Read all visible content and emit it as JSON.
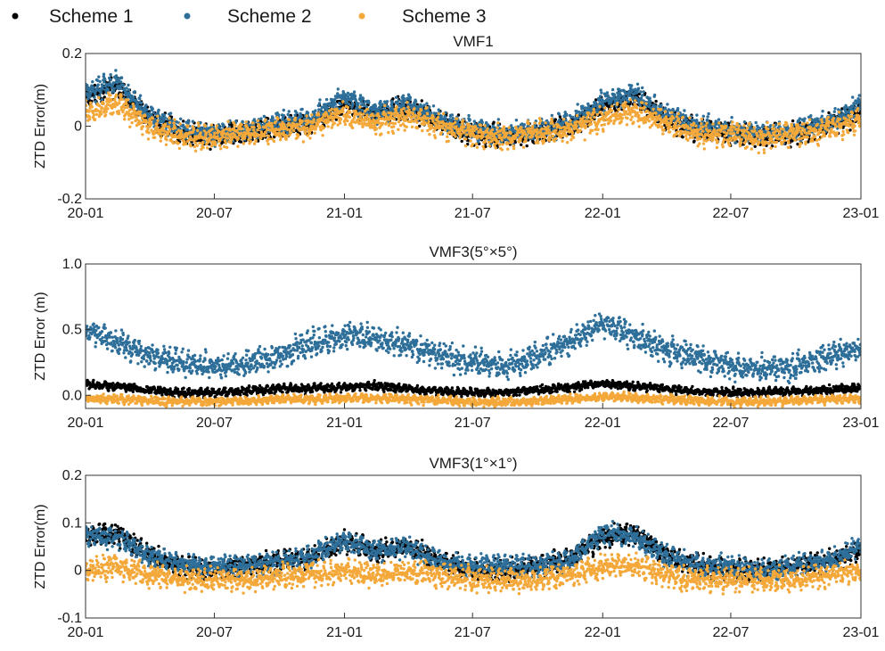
{
  "legend": {
    "placement": "top-left, horizontal",
    "entries": [
      {
        "label": "Scheme 1",
        "color": "#000000"
      },
      {
        "label": "Scheme 2",
        "color": "#2e6f9a"
      },
      {
        "label": "Scheme 3",
        "color": "#f4a83a"
      }
    ]
  },
  "chart_data": [
    {
      "type": "scatter",
      "title": "VMF1",
      "ylabel": "ZTD Error(m)",
      "xlabel": "",
      "x_axis": "date",
      "xlim": [
        "2020-01-01",
        "2023-01-01"
      ],
      "xticks": [
        {
          "date": "2020-01-01",
          "label": "20-01"
        },
        {
          "date": "2020-07-01",
          "label": "20-07"
        },
        {
          "date": "2021-01-01",
          "label": "21-01"
        },
        {
          "date": "2021-07-01",
          "label": "21-07"
        },
        {
          "date": "2022-01-01",
          "label": "22-01"
        },
        {
          "date": "2022-07-01",
          "label": "22-07"
        },
        {
          "date": "2023-01-01",
          "label": "23-01"
        }
      ],
      "ylim": [
        -0.2,
        0.2
      ],
      "yticks": [
        {
          "value": -0.2,
          "label": "-0.2"
        },
        {
          "value": 0,
          "label": "0"
        },
        {
          "value": 0.2,
          "label": "0.2"
        }
      ],
      "grid": false,
      "series": [
        {
          "name": "Scheme 1",
          "x": [
            "2020-01-01",
            "2020-02-15",
            "2020-04-01",
            "2020-05-15",
            "2020-07-01",
            "2020-08-15",
            "2020-10-01",
            "2020-11-15",
            "2021-01-01",
            "2021-02-15",
            "2021-04-01",
            "2021-05-15",
            "2021-07-01",
            "2021-08-15",
            "2021-10-01",
            "2021-11-15",
            "2022-01-01",
            "2022-02-15",
            "2022-04-01",
            "2022-05-15",
            "2022-07-01",
            "2022-08-15",
            "2022-10-01",
            "2022-11-15",
            "2023-01-01"
          ],
          "y": [
            0.08,
            0.11,
            0.02,
            -0.02,
            -0.03,
            -0.02,
            0.0,
            0.01,
            0.06,
            0.03,
            0.05,
            0.01,
            -0.02,
            -0.03,
            -0.02,
            0.0,
            0.05,
            0.08,
            0.02,
            -0.01,
            -0.02,
            -0.03,
            -0.02,
            0.0,
            0.04
          ]
        },
        {
          "name": "Scheme 2",
          "x": [
            "2020-01-01",
            "2020-02-15",
            "2020-04-01",
            "2020-05-15",
            "2020-07-01",
            "2020-08-15",
            "2020-10-01",
            "2020-11-15",
            "2021-01-01",
            "2021-02-15",
            "2021-04-01",
            "2021-05-15",
            "2021-07-01",
            "2021-08-15",
            "2021-10-01",
            "2021-11-15",
            "2022-01-01",
            "2022-02-15",
            "2022-04-01",
            "2022-05-15",
            "2022-07-01",
            "2022-08-15",
            "2022-10-01",
            "2022-11-15",
            "2023-01-01"
          ],
          "y": [
            0.09,
            0.12,
            0.03,
            -0.01,
            -0.02,
            -0.01,
            0.01,
            0.02,
            0.08,
            0.04,
            0.06,
            0.02,
            -0.01,
            -0.02,
            -0.01,
            0.01,
            0.07,
            0.09,
            0.03,
            0.0,
            -0.01,
            -0.02,
            -0.01,
            0.01,
            0.06
          ]
        },
        {
          "name": "Scheme 3",
          "x": [
            "2020-01-01",
            "2020-02-15",
            "2020-04-01",
            "2020-05-15",
            "2020-07-01",
            "2020-08-15",
            "2020-10-01",
            "2020-11-15",
            "2021-01-01",
            "2021-02-15",
            "2021-04-01",
            "2021-05-15",
            "2021-07-01",
            "2021-08-15",
            "2021-10-01",
            "2021-11-15",
            "2022-01-01",
            "2022-02-15",
            "2022-04-01",
            "2022-05-15",
            "2022-07-01",
            "2022-08-15",
            "2022-10-01",
            "2022-11-15",
            "2023-01-01"
          ],
          "y": [
            0.04,
            0.06,
            0.0,
            -0.03,
            -0.03,
            -0.02,
            -0.01,
            0.0,
            0.03,
            0.01,
            0.03,
            0.0,
            -0.02,
            -0.03,
            -0.02,
            -0.01,
            0.02,
            0.04,
            0.01,
            -0.02,
            -0.02,
            -0.03,
            -0.02,
            -0.01,
            0.02
          ]
        }
      ]
    },
    {
      "type": "scatter",
      "title": "VMF3(5°×5°)",
      "ylabel": "ZTD Error (m)",
      "xlabel": "",
      "x_axis": "date",
      "xlim": [
        "2020-01-01",
        "2023-01-01"
      ],
      "xticks": [
        {
          "date": "2020-01-01",
          "label": "20-01"
        },
        {
          "date": "2020-07-01",
          "label": "20-07"
        },
        {
          "date": "2021-01-01",
          "label": "21-01"
        },
        {
          "date": "2021-07-01",
          "label": "21-07"
        },
        {
          "date": "2022-01-01",
          "label": "22-01"
        },
        {
          "date": "2022-07-01",
          "label": "22-07"
        },
        {
          "date": "2023-01-01",
          "label": "23-01"
        }
      ],
      "ylim": [
        -0.1,
        1.0
      ],
      "yticks": [
        {
          "value": 0.0,
          "label": "0.0"
        },
        {
          "value": 0.5,
          "label": "0.5"
        },
        {
          "value": 1.0,
          "label": "1.0"
        }
      ],
      "grid": false,
      "series": [
        {
          "name": "Scheme 1",
          "x": [
            "2020-01-01",
            "2020-02-15",
            "2020-04-01",
            "2020-05-15",
            "2020-07-01",
            "2020-08-15",
            "2020-10-01",
            "2020-11-15",
            "2021-01-01",
            "2021-02-15",
            "2021-04-01",
            "2021-05-15",
            "2021-07-01",
            "2021-08-15",
            "2021-10-01",
            "2021-11-15",
            "2022-01-01",
            "2022-02-15",
            "2022-04-01",
            "2022-05-15",
            "2022-07-01",
            "2022-08-15",
            "2022-10-01",
            "2022-11-15",
            "2023-01-01"
          ],
          "y": [
            0.08,
            0.07,
            0.04,
            0.02,
            0.02,
            0.03,
            0.05,
            0.05,
            0.06,
            0.07,
            0.05,
            0.03,
            0.02,
            0.02,
            0.04,
            0.06,
            0.09,
            0.07,
            0.05,
            0.03,
            0.02,
            0.02,
            0.03,
            0.04,
            0.06
          ]
        },
        {
          "name": "Scheme 2",
          "x": [
            "2020-01-01",
            "2020-02-15",
            "2020-04-01",
            "2020-05-15",
            "2020-07-01",
            "2020-08-15",
            "2020-10-01",
            "2020-11-15",
            "2021-01-01",
            "2021-02-15",
            "2021-04-01",
            "2021-05-15",
            "2021-07-01",
            "2021-08-15",
            "2021-10-01",
            "2021-11-15",
            "2022-01-01",
            "2022-02-15",
            "2022-04-01",
            "2022-05-15",
            "2022-07-01",
            "2022-08-15",
            "2022-10-01",
            "2022-11-15",
            "2023-01-01"
          ],
          "y": [
            0.5,
            0.4,
            0.3,
            0.25,
            0.22,
            0.24,
            0.3,
            0.4,
            0.45,
            0.42,
            0.38,
            0.3,
            0.25,
            0.22,
            0.3,
            0.4,
            0.55,
            0.45,
            0.35,
            0.28,
            0.22,
            0.2,
            0.22,
            0.3,
            0.35
          ]
        },
        {
          "name": "Scheme 3",
          "x": [
            "2020-01-01",
            "2020-02-15",
            "2020-04-01",
            "2020-05-15",
            "2020-07-01",
            "2020-08-15",
            "2020-10-01",
            "2020-11-15",
            "2021-01-01",
            "2021-02-15",
            "2021-04-01",
            "2021-05-15",
            "2021-07-01",
            "2021-08-15",
            "2021-10-01",
            "2021-11-15",
            "2022-01-01",
            "2022-02-15",
            "2022-04-01",
            "2022-05-15",
            "2022-07-01",
            "2022-08-15",
            "2022-10-01",
            "2022-11-15",
            "2023-01-01"
          ],
          "y": [
            -0.02,
            -0.03,
            -0.04,
            -0.05,
            -0.05,
            -0.04,
            -0.03,
            -0.03,
            -0.02,
            -0.02,
            -0.03,
            -0.04,
            -0.05,
            -0.05,
            -0.04,
            -0.03,
            -0.01,
            -0.02,
            -0.03,
            -0.04,
            -0.05,
            -0.05,
            -0.04,
            -0.03,
            -0.03
          ]
        }
      ]
    },
    {
      "type": "scatter",
      "title": "VMF3(1°×1°)",
      "ylabel": "ZTD Error(m)",
      "xlabel": "",
      "x_axis": "date",
      "xlim": [
        "2020-01-01",
        "2023-01-01"
      ],
      "xticks": [
        {
          "date": "2020-01-01",
          "label": "20-01"
        },
        {
          "date": "2020-07-01",
          "label": "20-07"
        },
        {
          "date": "2021-01-01",
          "label": "21-01"
        },
        {
          "date": "2021-07-01",
          "label": "21-07"
        },
        {
          "date": "2022-01-01",
          "label": "22-01"
        },
        {
          "date": "2022-07-01",
          "label": "22-07"
        },
        {
          "date": "2023-01-01",
          "label": "23-01"
        }
      ],
      "ylim": [
        -0.1,
        0.2
      ],
      "yticks": [
        {
          "value": -0.1,
          "label": "-0.1"
        },
        {
          "value": 0,
          "label": "0"
        },
        {
          "value": 0.1,
          "label": "0.1"
        },
        {
          "value": 0.2,
          "label": "0.2"
        }
      ],
      "grid": false,
      "series": [
        {
          "name": "Scheme 1",
          "x": [
            "2020-01-01",
            "2020-02-15",
            "2020-04-01",
            "2020-05-15",
            "2020-07-01",
            "2020-08-15",
            "2020-10-01",
            "2020-11-15",
            "2021-01-01",
            "2021-02-15",
            "2021-04-01",
            "2021-05-15",
            "2021-07-01",
            "2021-08-15",
            "2021-10-01",
            "2021-11-15",
            "2022-01-01",
            "2022-02-15",
            "2022-04-01",
            "2022-05-15",
            "2022-07-01",
            "2022-08-15",
            "2022-10-01",
            "2022-11-15",
            "2023-01-01"
          ],
          "y": [
            0.07,
            0.08,
            0.03,
            0.01,
            0.0,
            0.01,
            0.02,
            0.03,
            0.06,
            0.04,
            0.05,
            0.02,
            0.0,
            0.0,
            0.01,
            0.02,
            0.07,
            0.08,
            0.03,
            0.01,
            0.0,
            0.0,
            0.01,
            0.02,
            0.04
          ]
        },
        {
          "name": "Scheme 2",
          "x": [
            "2020-01-01",
            "2020-02-15",
            "2020-04-01",
            "2020-05-15",
            "2020-07-01",
            "2020-08-15",
            "2020-10-01",
            "2020-11-15",
            "2021-01-01",
            "2021-02-15",
            "2021-04-01",
            "2021-05-15",
            "2021-07-01",
            "2021-08-15",
            "2021-10-01",
            "2021-11-15",
            "2022-01-01",
            "2022-02-15",
            "2022-04-01",
            "2022-05-15",
            "2022-07-01",
            "2022-08-15",
            "2022-10-01",
            "2022-11-15",
            "2023-01-01"
          ],
          "y": [
            0.07,
            0.07,
            0.03,
            0.01,
            0.01,
            0.01,
            0.02,
            0.03,
            0.06,
            0.04,
            0.05,
            0.02,
            0.01,
            0.01,
            0.01,
            0.02,
            0.08,
            0.07,
            0.03,
            0.01,
            0.01,
            0.0,
            0.01,
            0.02,
            0.05
          ]
        },
        {
          "name": "Scheme 3",
          "x": [
            "2020-01-01",
            "2020-02-15",
            "2020-04-01",
            "2020-05-15",
            "2020-07-01",
            "2020-08-15",
            "2020-10-01",
            "2020-11-15",
            "2021-01-01",
            "2021-02-15",
            "2021-04-01",
            "2021-05-15",
            "2021-07-01",
            "2021-08-15",
            "2021-10-01",
            "2021-11-15",
            "2022-01-01",
            "2022-02-15",
            "2022-04-01",
            "2022-05-15",
            "2022-07-01",
            "2022-08-15",
            "2022-10-01",
            "2022-11-15",
            "2023-01-01"
          ],
          "y": [
            0.0,
            0.01,
            -0.01,
            -0.02,
            -0.02,
            -0.02,
            -0.01,
            -0.01,
            0.0,
            -0.01,
            0.0,
            -0.01,
            -0.02,
            -0.02,
            -0.02,
            -0.01,
            0.01,
            0.01,
            -0.01,
            -0.02,
            -0.02,
            -0.02,
            -0.02,
            -0.01,
            0.0
          ]
        }
      ]
    }
  ]
}
